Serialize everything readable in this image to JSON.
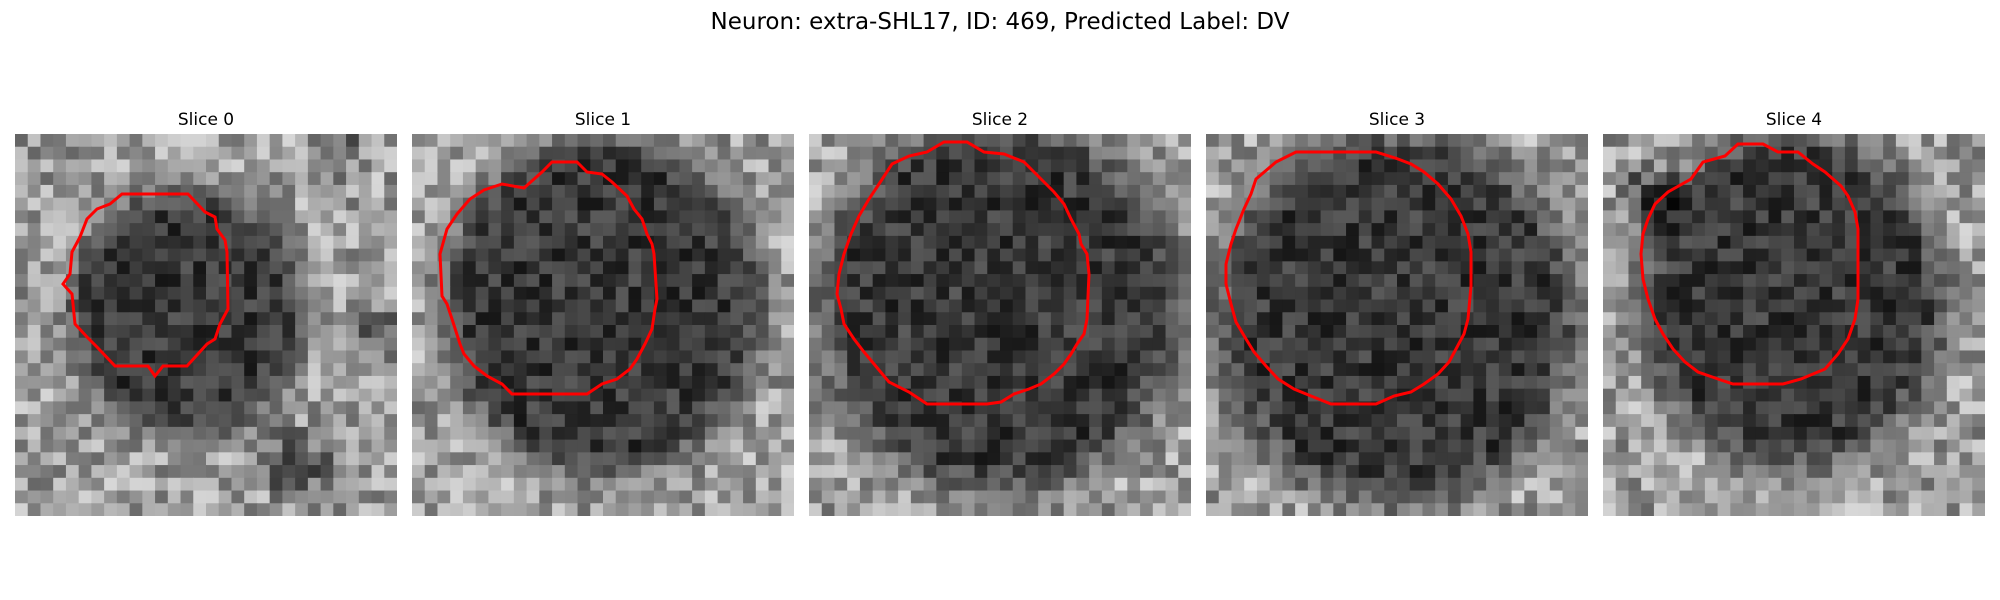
{
  "figure": {
    "title": "Neuron: extra-SHL17, ID: 469, Predicted Label: DV"
  },
  "colors": {
    "contour": "#ff0000",
    "background": "#ffffff"
  },
  "slices": [
    {
      "title": "Slice 0"
    },
    {
      "title": "Slice 1"
    },
    {
      "title": "Slice 2"
    },
    {
      "title": "Slice 3"
    },
    {
      "title": "Slice 4"
    }
  ]
}
